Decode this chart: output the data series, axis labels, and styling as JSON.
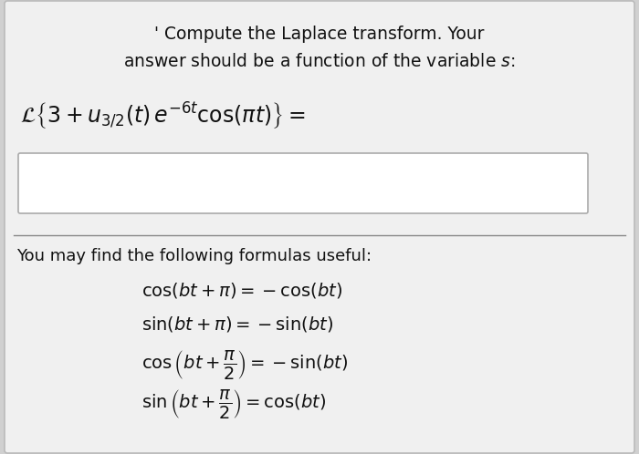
{
  "bg_outer": "#d0d0d0",
  "card_bg": "#f0f0f0",
  "input_box_bg": "#ffffff",
  "text_color": "#111111",
  "title_line1": "' Compute the Laplace transform. Your",
  "title_line2": "answer should be a function of the variable $s$:",
  "formulas_label": "You may find the following formulas useful:",
  "formula1": "$\\cos(bt + \\pi) = -\\cos(bt)$",
  "formula2": "$\\sin(bt + \\pi) = -\\sin(bt)$",
  "formula3": "$\\cos\\left(bt + \\dfrac{\\pi}{2}\\right) = -\\sin(bt)$",
  "formula4": "$\\sin\\left(bt + \\dfrac{\\pi}{2}\\right) = \\cos(bt)$",
  "font_size_title": 13.5,
  "font_size_expr": 17,
  "font_size_formulas_label": 13,
  "font_size_formulas": 14,
  "divider_color": "#888888"
}
